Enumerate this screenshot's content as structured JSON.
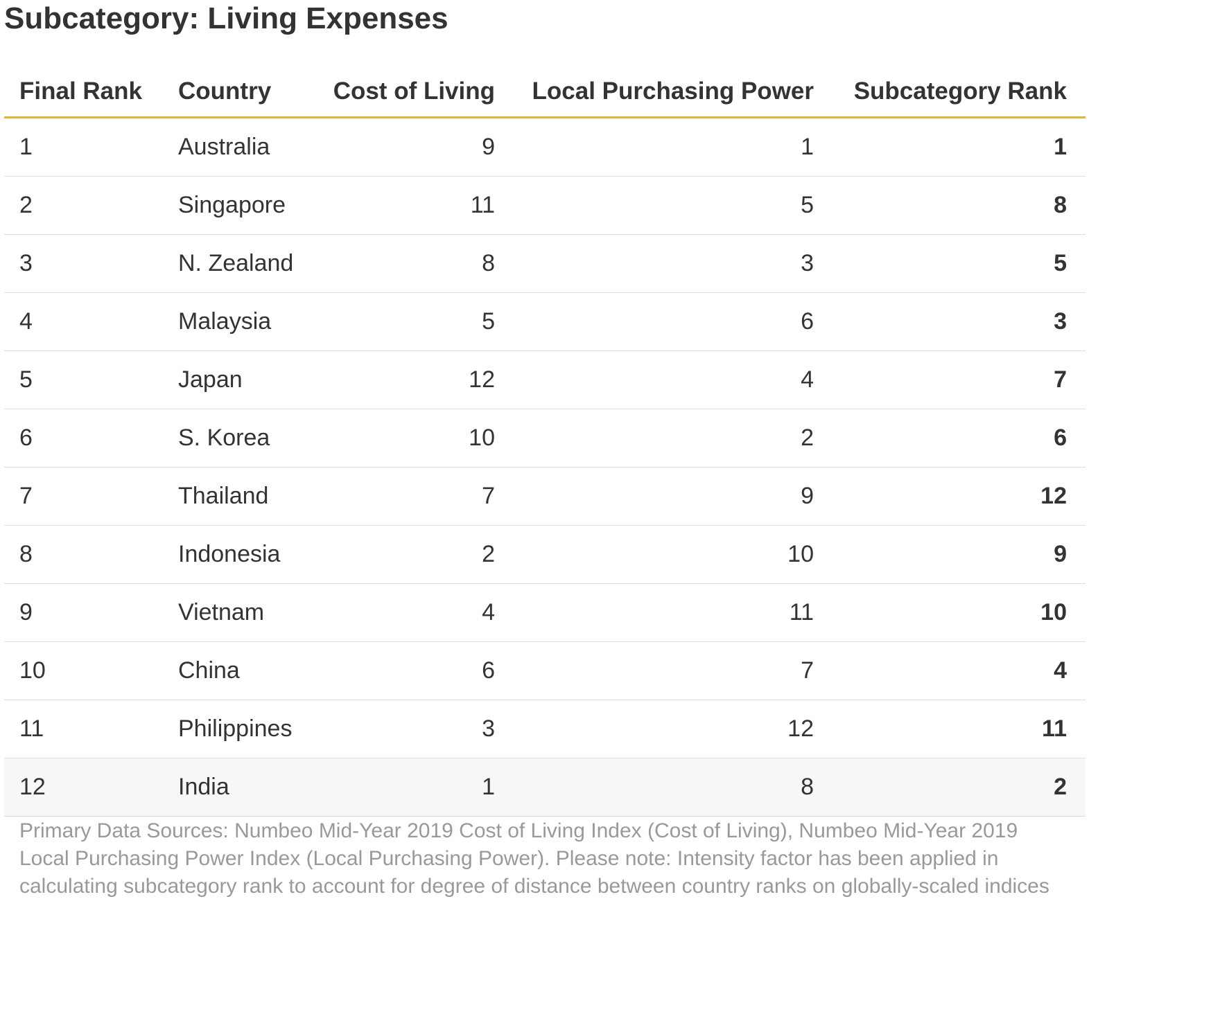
{
  "title": "Subcategory: Living Expenses",
  "chart_data": {
    "type": "table",
    "title": "Subcategory: Living Expenses",
    "columns": [
      "Final Rank",
      "Country",
      "Cost of Living",
      "Local Purchasing Power",
      "Subcategory Rank"
    ],
    "rows": [
      [
        "1",
        "Australia",
        "9",
        "1",
        "1"
      ],
      [
        "2",
        "Singapore",
        "11",
        "5",
        "8"
      ],
      [
        "3",
        "N. Zealand",
        "8",
        "3",
        "5"
      ],
      [
        "4",
        "Malaysia",
        "5",
        "6",
        "3"
      ],
      [
        "5",
        "Japan",
        "12",
        "4",
        "7"
      ],
      [
        "6",
        "S. Korea",
        "10",
        "2",
        "6"
      ],
      [
        "7",
        "Thailand",
        "7",
        "9",
        "12"
      ],
      [
        "8",
        "Indonesia",
        "2",
        "10",
        "9"
      ],
      [
        "9",
        "Vietnam",
        "4",
        "11",
        "10"
      ],
      [
        "10",
        "China",
        "6",
        "7",
        "4"
      ],
      [
        "11",
        "Philippines",
        "3",
        "12",
        "11"
      ],
      [
        "12",
        "India",
        "1",
        "8",
        "2"
      ]
    ],
    "highlighted_row": "India",
    "colors": {
      "header_rule": "#e3b23c",
      "text": "#333333",
      "footer_text": "#999999",
      "row_divider": "#dddddd",
      "highlight_row": "#f7f7f7"
    }
  },
  "footer": "Primary Data Sources: Numbeo Mid-Year 2019 Cost of Living Index (Cost of Living), Numbeo Mid-Year 2019 Local Purchasing Power Index (Local Purchasing Power). Please note: Intensity factor has been applied in calculating subcategory rank to account for degree of distance between country ranks on globally-scaled indices"
}
